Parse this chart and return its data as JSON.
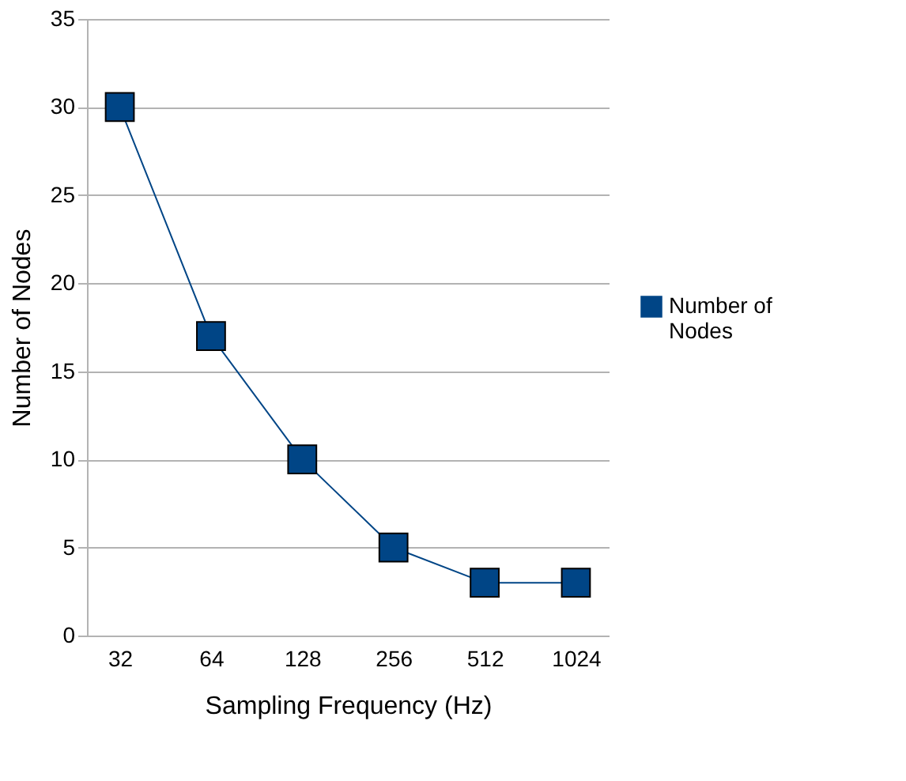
{
  "chart_data": {
    "type": "line",
    "categories": [
      "32",
      "64",
      "128",
      "256",
      "512",
      "1024"
    ],
    "series": [
      {
        "name": "Number of Nodes",
        "color": "#004586",
        "values": [
          30,
          17,
          10,
          5,
          3,
          3
        ]
      }
    ],
    "xlabel": "Sampling Frequency (Hz)",
    "ylabel": "Number of Nodes",
    "ylim": [
      0,
      35
    ],
    "yticks": [
      0,
      5,
      10,
      15,
      20,
      25,
      30,
      35
    ],
    "grid": "y",
    "legend": "right",
    "marker": "square",
    "line_style": "solid"
  }
}
